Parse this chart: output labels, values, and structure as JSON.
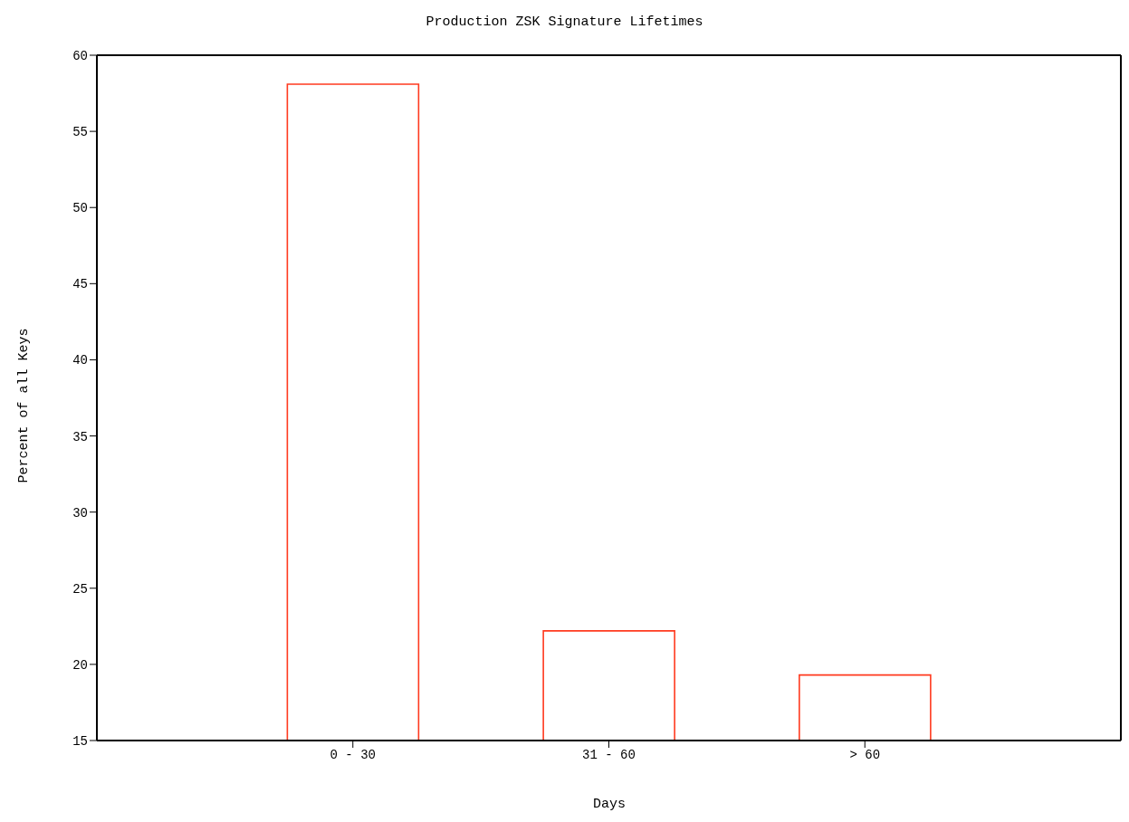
{
  "chart_data": {
    "type": "bar",
    "title": "Production ZSK Signature Lifetimes",
    "xlabel": "Days",
    "ylabel": "Percent of all Keys",
    "categories": [
      "0 - 30",
      "31 - 60",
      "> 60"
    ],
    "values": [
      58.1,
      22.2,
      19.3
    ],
    "color": "#ff3a1f",
    "ylim": [
      15,
      60
    ],
    "yticks": [
      15,
      20,
      25,
      30,
      35,
      40,
      45,
      50,
      55,
      60
    ],
    "grid": false
  }
}
